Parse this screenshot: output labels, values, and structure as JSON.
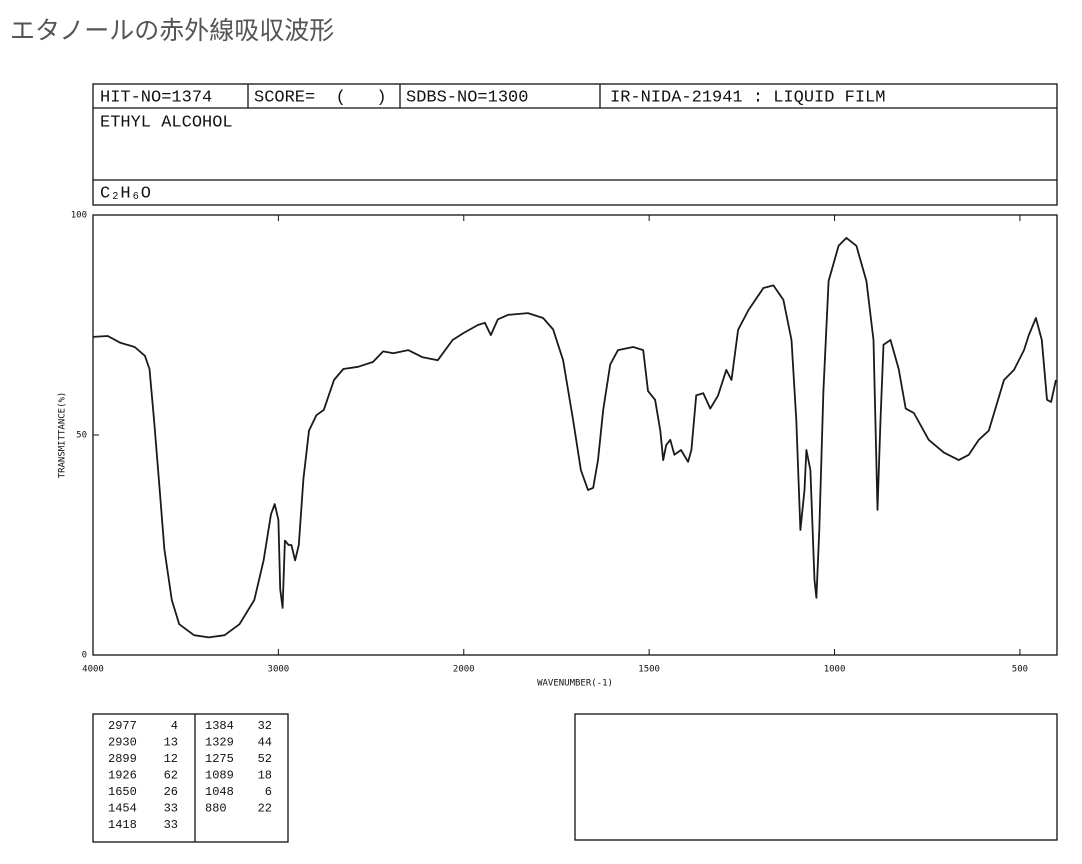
{
  "page_title": "エタノールの赤外線吸収波形",
  "header": {
    "hit_no": "HIT-NO=1374",
    "score": "SCORE=  (   )",
    "sdbs_no": "SDBS-NO=1300",
    "method": "IR-NIDA-21941 : LIQUID FILM",
    "name": "ETHYL ALCOHOL",
    "formula": "C₂H₆O"
  },
  "chart_data": {
    "type": "line",
    "x_label": "WAVENUMBER(-1)",
    "y_label": "TRANSMITTANCE(%)",
    "color": "#1a1a1a",
    "xlim": [
      4000,
      400
    ],
    "xticks": [
      4000,
      3000,
      2000,
      1500,
      1000,
      500
    ],
    "ylim": [
      0,
      100
    ],
    "yticks": [
      0,
      50,
      100
    ],
    "x": [
      4000,
      3920,
      3855,
      3775,
      3720,
      3695,
      3670,
      3640,
      3615,
      3575,
      3535,
      3455,
      3375,
      3290,
      3210,
      3130,
      3080,
      3040,
      3020,
      3000,
      2990,
      2977,
      2965,
      2945,
      2930,
      2910,
      2890,
      2865,
      2835,
      2795,
      2755,
      2700,
      2650,
      2570,
      2490,
      2435,
      2380,
      2300,
      2225,
      2140,
      2060,
      2000,
      1962,
      1943,
      1927,
      1908,
      1881,
      1827,
      1786,
      1759,
      1732,
      1705,
      1684,
      1665,
      1651,
      1638,
      1624,
      1605,
      1584,
      1543,
      1516,
      1503,
      1484,
      1470,
      1462,
      1454,
      1443,
      1432,
      1414,
      1395,
      1386,
      1373,
      1354,
      1335,
      1314,
      1292,
      1278,
      1260,
      1232,
      1192,
      1165,
      1138,
      1116,
      1103,
      1092,
      1081,
      1076,
      1065,
      1054,
      1049,
      1041,
      1030,
      1016,
      989,
      968,
      941,
      914,
      895,
      884,
      876,
      868,
      849,
      827,
      808,
      786,
      746,
      705,
      665,
      638,
      611,
      584,
      543,
      516,
      489,
      476,
      457,
      441,
      427,
      416,
      403
    ],
    "series": [
      {
        "name": "ETHYL ALCOHOL",
        "values": [
          72.3,
          72.5,
          71,
          70,
          68,
          65,
          53,
          37.5,
          24,
          12.5,
          7,
          4.5,
          4,
          4.5,
          7,
          12.5,
          21.5,
          32,
          34.3,
          30.7,
          15,
          10.7,
          26,
          25,
          25,
          21.5,
          25,
          40,
          51,
          54.5,
          55.7,
          62.5,
          65,
          65.5,
          66.6,
          69,
          68.6,
          69.3,
          67.7,
          67,
          71.6,
          73.2,
          75,
          75.5,
          72.7,
          76.3,
          77.3,
          77.7,
          76.6,
          74,
          67,
          53.4,
          42,
          37.5,
          38,
          44.3,
          55.7,
          66,
          69.3,
          70,
          69.3,
          60,
          58,
          51,
          44.3,
          47.7,
          48.9,
          45.5,
          46.6,
          43.9,
          46.6,
          59,
          59.5,
          56,
          59,
          64.8,
          62.5,
          73.9,
          78.4,
          83.4,
          84,
          80.7,
          71.6,
          53.4,
          28.4,
          37.5,
          46.6,
          42,
          17,
          13,
          28.4,
          60,
          85,
          93,
          94.8,
          93,
          85,
          71.6,
          33,
          53.4,
          70.5,
          71.6,
          65,
          56,
          55,
          48.9,
          46,
          44.3,
          45.5,
          48.9,
          51,
          62.5,
          64.8,
          69.3,
          72.7,
          76.6,
          71.6,
          58,
          57.5,
          62.5
        ]
      }
    ]
  },
  "peaks": {
    "columns": [
      [
        [
          2977,
          4
        ],
        [
          2930,
          13
        ],
        [
          2899,
          12
        ],
        [
          1926,
          62
        ],
        [
          1650,
          26
        ],
        [
          1454,
          33
        ],
        [
          1418,
          33
        ]
      ],
      [
        [
          1384,
          32
        ],
        [
          1329,
          44
        ],
        [
          1275,
          52
        ],
        [
          1089,
          18
        ],
        [
          1048,
          6
        ],
        [
          880,
          22
        ]
      ]
    ]
  }
}
